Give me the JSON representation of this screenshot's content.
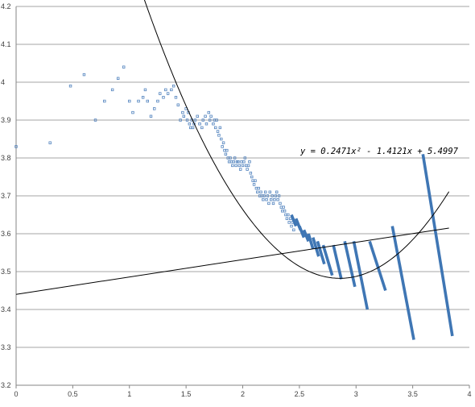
{
  "chart_data": {
    "type": "scatter",
    "title": "",
    "xlabel": "",
    "ylabel": "",
    "xlim": [
      0,
      4
    ],
    "ylim": [
      3.2,
      4.2
    ],
    "x_ticks": [
      "0",
      "0.5",
      "1",
      "1.5",
      "2",
      "2.5",
      "3",
      "3.5",
      "4"
    ],
    "y_ticks": [
      "3.2",
      "3.3",
      "3.4",
      "3.5",
      "3.6",
      "3.7",
      "3.8",
      "3.9",
      "4",
      "4.1",
      "4.2"
    ],
    "grid": "horizontal",
    "legend": "none",
    "colors": {
      "points": "#4f81bd",
      "bars": "#3f76b4",
      "curve": "#000000",
      "grid": "#a6a6a6"
    },
    "equation_label": "y = 0.2471x² - 1.4121x + 5.4997",
    "series": [
      {
        "kind": "points",
        "x": [
          0.0,
          0.3,
          0.48,
          0.6,
          0.7,
          0.78,
          0.85,
          0.9,
          0.95,
          1.0,
          1.03,
          1.08,
          1.12,
          1.14,
          1.16,
          1.19,
          1.22,
          1.25,
          1.27,
          1.3,
          1.32,
          1.34,
          1.37,
          1.39,
          1.41,
          1.43,
          1.45,
          1.47,
          1.48,
          1.5,
          1.51,
          1.52,
          1.53,
          1.54,
          1.55,
          1.56,
          1.57,
          1.58,
          1.6,
          1.62,
          1.64,
          1.65,
          1.67,
          1.68,
          1.7,
          1.71,
          1.72,
          1.74,
          1.75,
          1.76,
          1.77,
          1.78,
          1.79,
          1.8,
          1.81,
          1.82,
          1.83,
          1.84,
          1.85,
          1.86,
          1.87,
          1.88,
          1.89,
          1.9,
          1.91,
          1.92,
          1.93,
          1.94,
          1.95,
          1.96,
          1.97,
          1.98,
          1.99,
          2.0,
          2.01,
          2.02,
          2.03,
          2.04,
          2.05,
          2.06,
          2.07,
          2.08,
          2.09,
          2.1,
          2.11,
          2.12,
          2.13,
          2.14,
          2.15,
          2.16,
          2.17,
          2.18,
          2.19,
          2.2,
          2.21,
          2.22,
          2.23,
          2.24,
          2.25,
          2.26,
          2.27,
          2.28,
          2.29,
          2.3,
          2.31,
          2.32,
          2.33,
          2.34,
          2.35,
          2.36,
          2.37,
          2.38,
          2.39,
          2.4,
          2.41,
          2.42,
          2.43,
          2.44,
          2.45
        ],
        "y": [
          3.83,
          3.84,
          3.99,
          4.02,
          3.9,
          3.95,
          3.98,
          4.01,
          4.04,
          3.95,
          3.92,
          3.95,
          3.96,
          3.98,
          3.95,
          3.91,
          3.93,
          3.95,
          3.97,
          3.96,
          3.98,
          3.97,
          3.98,
          3.99,
          3.96,
          3.94,
          3.9,
          3.92,
          3.91,
          3.93,
          3.9,
          3.92,
          3.89,
          3.88,
          3.9,
          3.88,
          3.89,
          3.9,
          3.91,
          3.89,
          3.88,
          3.9,
          3.91,
          3.89,
          3.92,
          3.9,
          3.91,
          3.89,
          3.9,
          3.88,
          3.9,
          3.87,
          3.86,
          3.88,
          3.85,
          3.83,
          3.84,
          3.82,
          3.81,
          3.82,
          3.8,
          3.79,
          3.8,
          3.79,
          3.78,
          3.79,
          3.8,
          3.78,
          3.79,
          3.79,
          3.78,
          3.77,
          3.79,
          3.78,
          3.79,
          3.8,
          3.78,
          3.77,
          3.78,
          3.79,
          3.76,
          3.75,
          3.74,
          3.73,
          3.74,
          3.72,
          3.71,
          3.72,
          3.7,
          3.71,
          3.7,
          3.69,
          3.7,
          3.71,
          3.69,
          3.7,
          3.68,
          3.71,
          3.69,
          3.7,
          3.68,
          3.69,
          3.7,
          3.71,
          3.69,
          3.7,
          3.68,
          3.67,
          3.66,
          3.67,
          3.66,
          3.65,
          3.64,
          3.65,
          3.63,
          3.64,
          3.62,
          3.63,
          3.61
        ]
      },
      {
        "kind": "segments",
        "segments": [
          [
            2.43,
            3.65,
            2.47,
            3.62
          ],
          [
            2.47,
            3.64,
            2.51,
            3.61
          ],
          [
            2.5,
            3.62,
            2.54,
            3.59
          ],
          [
            2.54,
            3.61,
            2.58,
            3.58
          ],
          [
            2.58,
            3.6,
            2.62,
            3.56
          ],
          [
            2.62,
            3.59,
            2.67,
            3.54
          ],
          [
            2.66,
            3.58,
            2.72,
            3.52
          ],
          [
            2.71,
            3.57,
            2.79,
            3.49
          ],
          [
            2.8,
            3.57,
            2.87,
            3.48
          ],
          [
            2.9,
            3.58,
            2.99,
            3.46
          ],
          [
            2.98,
            3.58,
            3.1,
            3.4
          ],
          [
            3.12,
            3.58,
            3.26,
            3.45
          ],
          [
            3.32,
            3.62,
            3.51,
            3.32
          ],
          [
            3.59,
            3.81,
            3.85,
            3.33
          ]
        ]
      },
      {
        "kind": "line",
        "x": [
          0,
          3.82
        ],
        "y": [
          3.44,
          3.615
        ]
      },
      {
        "kind": "curve",
        "coefficients": [
          0.2471,
          -1.4121,
          5.4997
        ],
        "x_from": 1.12,
        "x_to": 3.82
      }
    ]
  }
}
